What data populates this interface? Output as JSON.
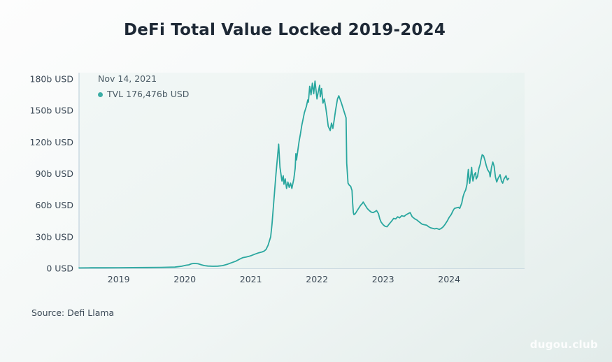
{
  "page": {
    "title": "DeFi Total Value Locked 2019-2024",
    "source": "Source: Defi Llama",
    "watermark": "dugou.club"
  },
  "tooltip": {
    "date": "Nov 14, 2021",
    "value_label": "TVL 176,476b USD",
    "dot_color": "#2aa79f"
  },
  "chart_data": {
    "type": "line",
    "title": "DeFi Total Value Locked 2019-2024",
    "xlabel": "",
    "ylabel": "",
    "grid": false,
    "legend_position": "top-left",
    "line_color": "#2aa79f",
    "axis_line_color": "#c9d8e0",
    "x_range": [
      2018.4,
      2024.95
    ],
    "y_range": [
      0,
      180
    ],
    "x_tick_values": [
      2019,
      2020,
      2021,
      2022,
      2023,
      2024
    ],
    "x_tick_labels": [
      "2019",
      "2020",
      "2021",
      "2022",
      "2023",
      "2024"
    ],
    "y_tick_values": [
      0,
      30,
      60,
      90,
      120,
      150,
      180
    ],
    "y_tick_labels": [
      "0 USD",
      "30b USD",
      "60b USD",
      "90b USD",
      "120b USD",
      "150b USD",
      "180b USD"
    ],
    "highlighted_point": {
      "date": "Nov 14, 2021",
      "value_b_usd": 176.476
    },
    "series": [
      {
        "name": "TVL",
        "unit": "b USD",
        "points": [
          [
            2018.4,
            0.4
          ],
          [
            2018.58,
            0.5
          ],
          [
            2018.79,
            0.5
          ],
          [
            2019.0,
            0.6
          ],
          [
            2019.21,
            0.7
          ],
          [
            2019.42,
            0.8
          ],
          [
            2019.64,
            0.9
          ],
          [
            2019.85,
            1.2
          ],
          [
            2019.95,
            2.0
          ],
          [
            2020.02,
            3.0
          ],
          [
            2020.06,
            3.3
          ],
          [
            2020.1,
            4.3
          ],
          [
            2020.14,
            4.7
          ],
          [
            2020.2,
            4.4
          ],
          [
            2020.25,
            3.4
          ],
          [
            2020.3,
            2.6
          ],
          [
            2020.35,
            2.2
          ],
          [
            2020.43,
            2.0
          ],
          [
            2020.5,
            2.1
          ],
          [
            2020.57,
            2.6
          ],
          [
            2020.64,
            3.8
          ],
          [
            2020.7,
            5.2
          ],
          [
            2020.77,
            6.8
          ],
          [
            2020.83,
            8.8
          ],
          [
            2020.88,
            10.2
          ],
          [
            2020.93,
            10.8
          ],
          [
            2020.97,
            11.4
          ],
          [
            2021.01,
            12.2
          ],
          [
            2021.06,
            13.5
          ],
          [
            2021.12,
            14.8
          ],
          [
            2021.17,
            15.6
          ],
          [
            2021.2,
            16.4
          ],
          [
            2021.23,
            18
          ],
          [
            2021.26,
            22
          ],
          [
            2021.3,
            30
          ],
          [
            2021.32,
            42
          ],
          [
            2021.34,
            58
          ],
          [
            2021.36,
            74
          ],
          [
            2021.38,
            90
          ],
          [
            2021.4,
            104
          ],
          [
            2021.42,
            118
          ],
          [
            2021.44,
            96
          ],
          [
            2021.47,
            83
          ],
          [
            2021.49,
            88
          ],
          [
            2021.5,
            80
          ],
          [
            2021.52,
            85
          ],
          [
            2021.54,
            76
          ],
          [
            2021.56,
            82
          ],
          [
            2021.58,
            77
          ],
          [
            2021.6,
            81
          ],
          [
            2021.62,
            76
          ],
          [
            2021.65,
            85
          ],
          [
            2021.67,
            95
          ],
          [
            2021.68,
            109
          ],
          [
            2021.69,
            103
          ],
          [
            2021.71,
            112
          ],
          [
            2021.73,
            121
          ],
          [
            2021.75,
            128
          ],
          [
            2021.77,
            136
          ],
          [
            2021.79,
            142
          ],
          [
            2021.81,
            148
          ],
          [
            2021.84,
            154
          ],
          [
            2021.86,
            160
          ],
          [
            2021.87,
            158
          ],
          [
            2021.89,
            173
          ],
          [
            2021.91,
            165
          ],
          [
            2021.93,
            176
          ],
          [
            2021.95,
            166
          ],
          [
            2021.97,
            178
          ],
          [
            2022.0,
            161
          ],
          [
            2022.02,
            168
          ],
          [
            2022.04,
            174
          ],
          [
            2022.05,
            163
          ],
          [
            2022.07,
            171
          ],
          [
            2022.09,
            157
          ],
          [
            2022.11,
            161
          ],
          [
            2022.13,
            154
          ],
          [
            2022.15,
            145
          ],
          [
            2022.17,
            135
          ],
          [
            2022.2,
            131
          ],
          [
            2022.22,
            138
          ],
          [
            2022.24,
            133
          ],
          [
            2022.26,
            141
          ],
          [
            2022.28,
            150
          ],
          [
            2022.31,
            161
          ],
          [
            2022.33,
            164
          ],
          [
            2022.37,
            157
          ],
          [
            2022.39,
            153
          ],
          [
            2022.42,
            147
          ],
          [
            2022.44,
            143
          ],
          [
            2022.45,
            100
          ],
          [
            2022.47,
            81
          ],
          [
            2022.49,
            79
          ],
          [
            2022.51,
            78
          ],
          [
            2022.52,
            76
          ],
          [
            2022.53,
            74
          ],
          [
            2022.54,
            62
          ],
          [
            2022.55,
            53
          ],
          [
            2022.56,
            51
          ],
          [
            2022.58,
            52
          ],
          [
            2022.6,
            54
          ],
          [
            2022.63,
            57
          ],
          [
            2022.66,
            60
          ],
          [
            2022.69,
            62
          ],
          [
            2022.7,
            63
          ],
          [
            2022.72,
            61
          ],
          [
            2022.76,
            57
          ],
          [
            2022.79,
            55
          ],
          [
            2022.82,
            53.5
          ],
          [
            2022.85,
            53
          ],
          [
            2022.88,
            54
          ],
          [
            2022.9,
            55
          ],
          [
            2022.93,
            52
          ],
          [
            2022.95,
            47
          ],
          [
            2022.97,
            44
          ],
          [
            2023.0,
            41.5
          ],
          [
            2023.03,
            40
          ],
          [
            2023.06,
            39.5
          ],
          [
            2023.09,
            42
          ],
          [
            2023.13,
            45
          ],
          [
            2023.16,
            47.5
          ],
          [
            2023.19,
            47
          ],
          [
            2023.22,
            49
          ],
          [
            2023.25,
            48
          ],
          [
            2023.28,
            50
          ],
          [
            2023.32,
            49.5
          ],
          [
            2023.35,
            51
          ],
          [
            2023.38,
            52
          ],
          [
            2023.41,
            53
          ],
          [
            2023.44,
            49
          ],
          [
            2023.48,
            47
          ],
          [
            2023.51,
            46
          ],
          [
            2023.55,
            44
          ],
          [
            2023.59,
            42
          ],
          [
            2023.62,
            41.5
          ],
          [
            2023.66,
            41
          ],
          [
            2023.69,
            39.5
          ],
          [
            2023.72,
            38.5
          ],
          [
            2023.75,
            38
          ],
          [
            2023.78,
            37.5
          ],
          [
            2023.81,
            38
          ],
          [
            2023.85,
            37
          ],
          [
            2023.88,
            38
          ],
          [
            2023.91,
            39.5
          ],
          [
            2023.94,
            42
          ],
          [
            2023.97,
            45
          ],
          [
            2024.0,
            48.5
          ],
          [
            2024.03,
            51
          ],
          [
            2024.06,
            55
          ],
          [
            2024.08,
            57
          ],
          [
            2024.11,
            57.5
          ],
          [
            2024.14,
            58
          ],
          [
            2024.16,
            57
          ],
          [
            2024.19,
            62
          ],
          [
            2024.21,
            68
          ],
          [
            2024.23,
            72
          ],
          [
            2024.25,
            74.5
          ],
          [
            2024.27,
            80
          ],
          [
            2024.28,
            88
          ],
          [
            2024.29,
            94
          ],
          [
            2024.3,
            86
          ],
          [
            2024.31,
            81
          ],
          [
            2024.33,
            90
          ],
          [
            2024.34,
            96
          ],
          [
            2024.35,
            88
          ],
          [
            2024.36,
            83
          ],
          [
            2024.38,
            89
          ],
          [
            2024.4,
            91
          ],
          [
            2024.41,
            85
          ],
          [
            2024.43,
            87.5
          ],
          [
            2024.45,
            95
          ],
          [
            2024.47,
            99
          ],
          [
            2024.48,
            103
          ],
          [
            2024.5,
            108
          ],
          [
            2024.52,
            107
          ],
          [
            2024.54,
            103
          ],
          [
            2024.56,
            98
          ],
          [
            2024.58,
            94
          ],
          [
            2024.61,
            91
          ],
          [
            2024.62,
            87
          ],
          [
            2024.64,
            96
          ],
          [
            2024.66,
            101
          ],
          [
            2024.68,
            97
          ],
          [
            2024.7,
            87
          ],
          [
            2024.72,
            82
          ],
          [
            2024.74,
            85.5
          ],
          [
            2024.77,
            89
          ],
          [
            2024.79,
            83
          ],
          [
            2024.81,
            81
          ],
          [
            2024.83,
            85
          ],
          [
            2024.86,
            88
          ],
          [
            2024.88,
            84
          ],
          [
            2024.9,
            85.5
          ]
        ]
      }
    ]
  }
}
